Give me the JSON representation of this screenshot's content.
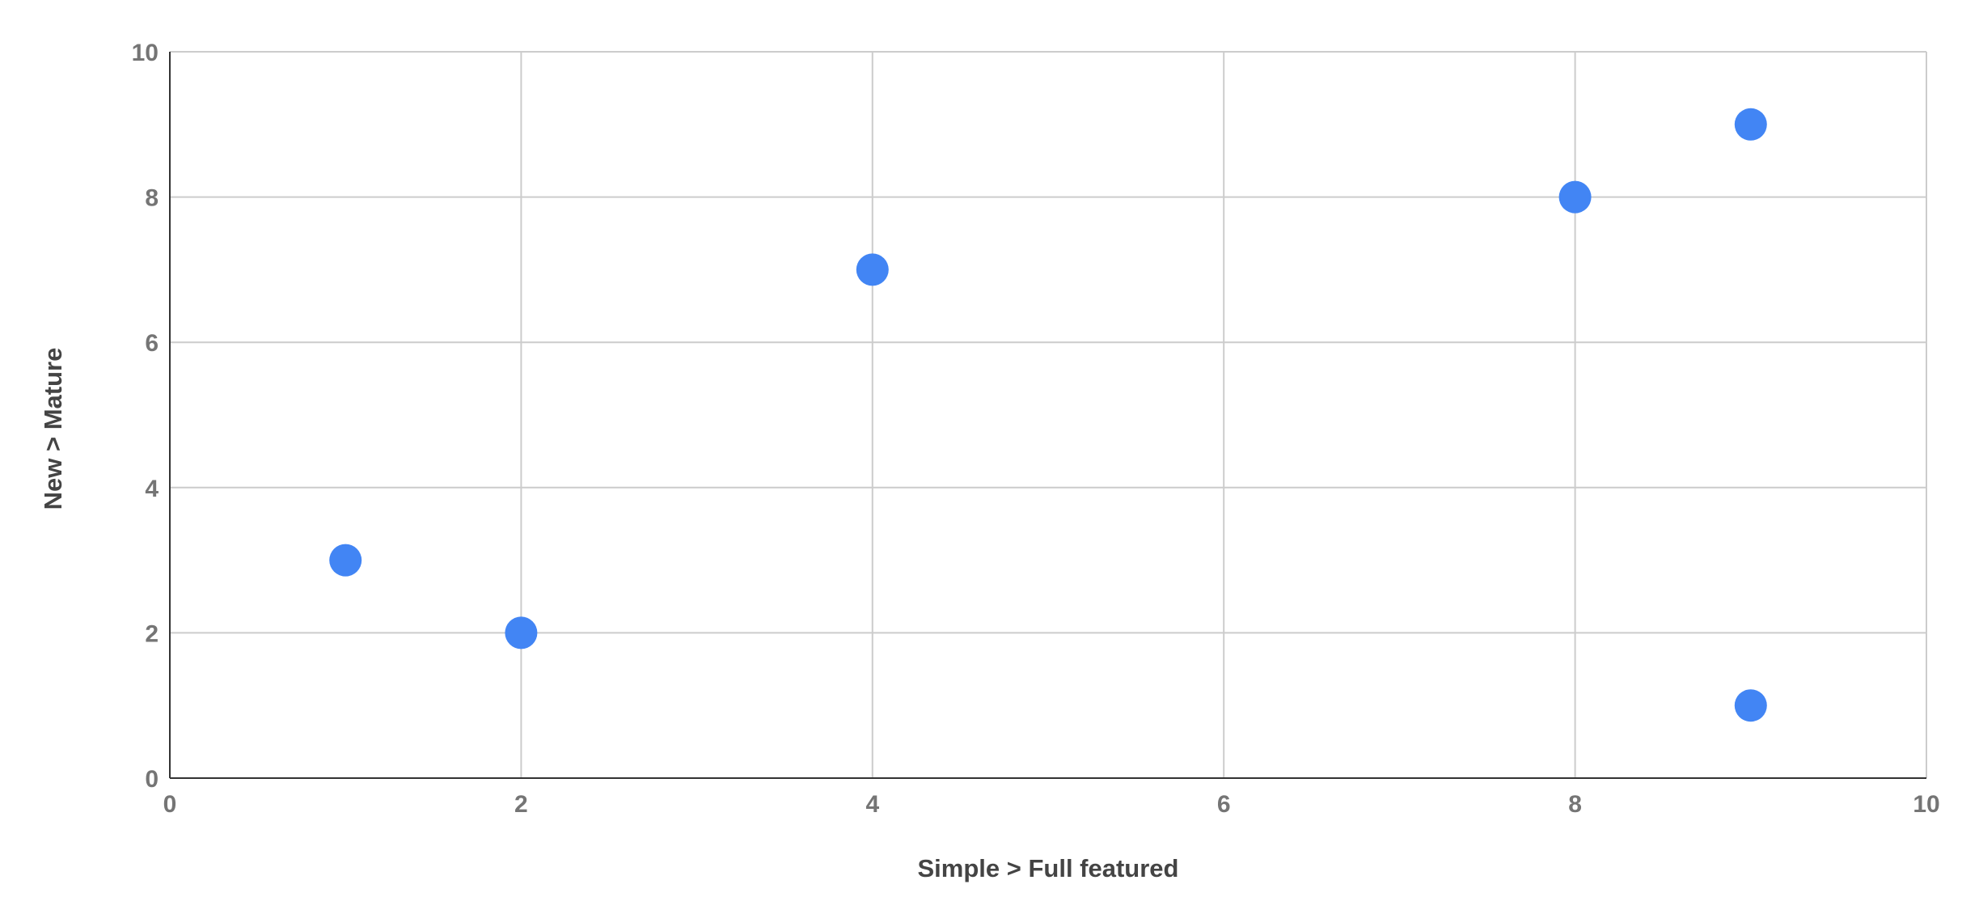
{
  "chart_data": {
    "type": "scatter",
    "xlabel": "Simple > Full featured",
    "ylabel": "New > Mature",
    "xlim": [
      0,
      10
    ],
    "ylim": [
      0,
      10
    ],
    "xticks": [
      "0",
      "2",
      "4",
      "6",
      "8",
      "10"
    ],
    "yticks": [
      "0",
      "2",
      "4",
      "6",
      "8",
      "10"
    ],
    "grid": true,
    "legend": "none",
    "point_color": "#4285F4",
    "points": [
      {
        "x": 1,
        "y": 3
      },
      {
        "x": 2,
        "y": 2
      },
      {
        "x": 4,
        "y": 7
      },
      {
        "x": 8,
        "y": 8
      },
      {
        "x": 9,
        "y": 9
      },
      {
        "x": 9,
        "y": 1
      }
    ]
  }
}
